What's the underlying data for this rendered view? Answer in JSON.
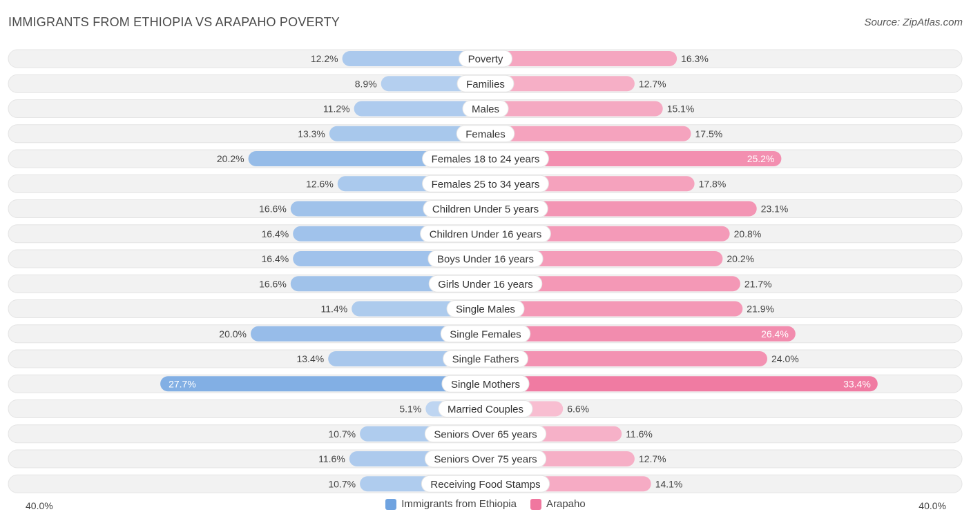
{
  "header": {
    "title": "IMMIGRANTS FROM ETHIOPIA VS ARAPAHO POVERTY",
    "source": "Source: ZipAtlas.com"
  },
  "axis": {
    "left_label": "40.0%",
    "right_label": "40.0%"
  },
  "legend": {
    "left_label": "Immigrants from Ethiopia",
    "right_label": "Arapaho"
  },
  "colors": {
    "left_base": "#6fa3e0",
    "right_base": "#f0779f",
    "track": "#f2f2f2"
  },
  "chart_data": {
    "type": "bar",
    "orientation": "diverging-horizontal",
    "title": "IMMIGRANTS FROM ETHIOPIA VS ARAPAHO POVERTY",
    "xlim": [
      -40,
      40
    ],
    "unit": "%",
    "categories": [
      "Poverty",
      "Families",
      "Males",
      "Females",
      "Females 18 to 24 years",
      "Females 25 to 34 years",
      "Children Under 5 years",
      "Children Under 16 years",
      "Boys Under 16 years",
      "Girls Under 16 years",
      "Single Males",
      "Single Females",
      "Single Fathers",
      "Single Mothers",
      "Married Couples",
      "Seniors Over 65 years",
      "Seniors Over 75 years",
      "Receiving Food Stamps"
    ],
    "series": [
      {
        "name": "Immigrants from Ethiopia",
        "values": [
          12.2,
          8.9,
          11.2,
          13.3,
          20.2,
          12.6,
          16.6,
          16.4,
          16.4,
          16.6,
          11.4,
          20.0,
          13.4,
          27.7,
          5.1,
          10.7,
          11.6,
          10.7
        ],
        "labels": [
          "12.2%",
          "8.9%",
          "11.2%",
          "13.3%",
          "20.2%",
          "12.6%",
          "16.6%",
          "16.4%",
          "16.4%",
          "16.6%",
          "11.4%",
          "20.0%",
          "13.4%",
          "27.7%",
          "5.1%",
          "10.7%",
          "11.6%",
          "10.7%"
        ]
      },
      {
        "name": "Arapaho",
        "values": [
          16.3,
          12.7,
          15.1,
          17.5,
          25.2,
          17.8,
          23.1,
          20.8,
          20.2,
          21.7,
          21.9,
          26.4,
          24.0,
          33.4,
          6.6,
          11.6,
          12.7,
          14.1
        ],
        "labels": [
          "16.3%",
          "12.7%",
          "15.1%",
          "17.5%",
          "25.2%",
          "17.8%",
          "23.1%",
          "20.8%",
          "20.2%",
          "21.7%",
          "21.9%",
          "26.4%",
          "24.0%",
          "33.4%",
          "6.6%",
          "11.6%",
          "12.7%",
          "14.1%"
        ]
      }
    ]
  }
}
